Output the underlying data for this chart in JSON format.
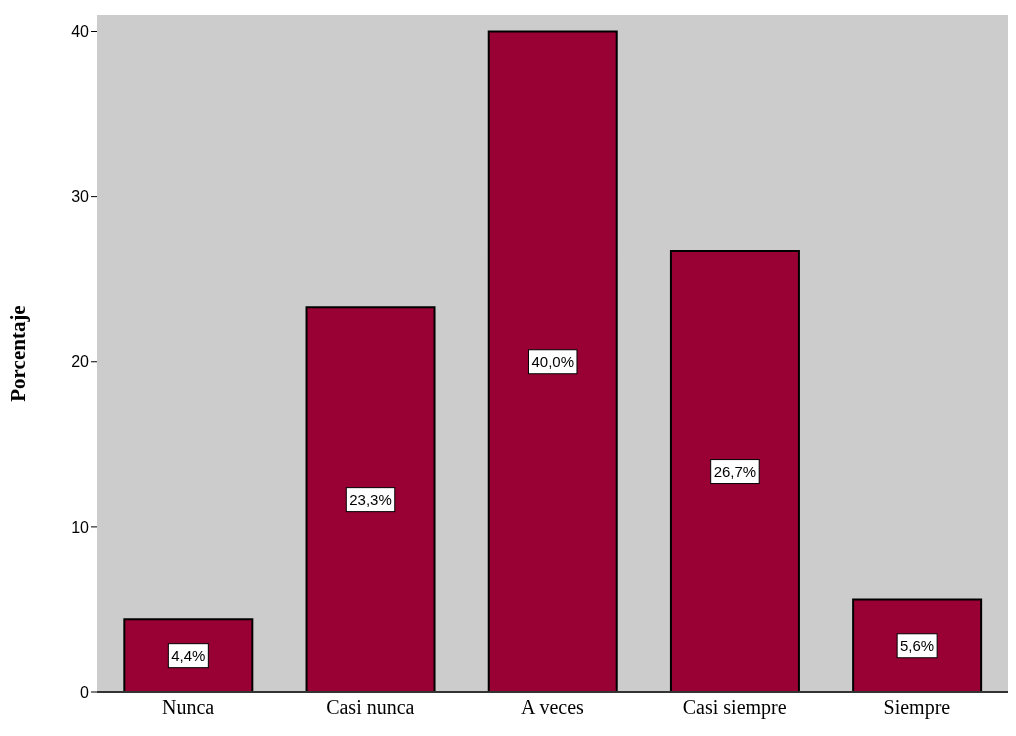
{
  "chart_data": {
    "type": "bar",
    "ylabel": "Porcentaje",
    "categories": [
      "Nunca",
      "Casi nunca",
      "A veces",
      "Casi siempre",
      "Siempre"
    ],
    "values": [
      4.4,
      23.3,
      40.0,
      26.7,
      5.6
    ],
    "value_labels": [
      "4,4%",
      "23,3%",
      "40,0%",
      "26,7%",
      "5,6%"
    ],
    "color": "#990033",
    "ylim": [
      0,
      41
    ],
    "yticks": [
      0,
      10,
      20,
      30,
      40
    ]
  }
}
